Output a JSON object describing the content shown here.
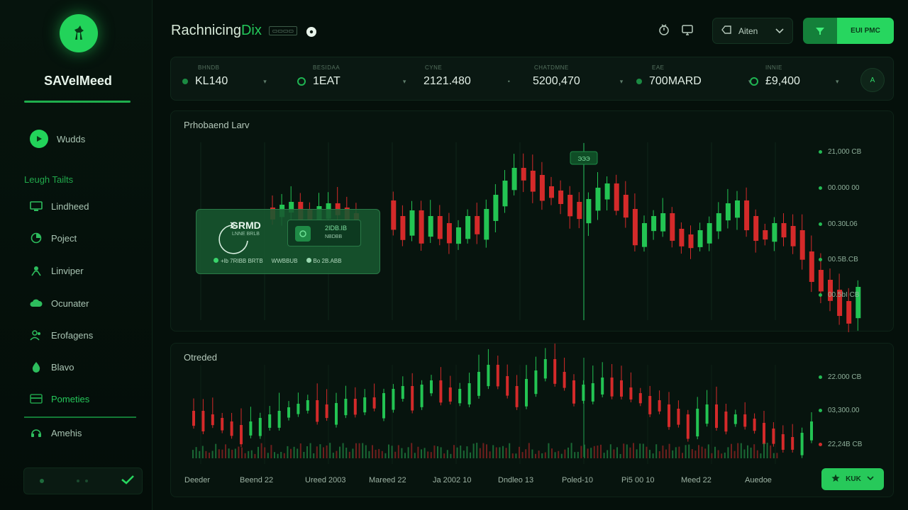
{
  "app": {
    "title_main": "Rachnicing",
    "title_accent": "Dix",
    "title_tag": "▭▭▭▭"
  },
  "sidebar": {
    "brand": "SAVelMeed",
    "primary_item": "Wudds",
    "section_label": "Leugh Tailts",
    "items": [
      {
        "label": "Lindheed",
        "icon": "monitor-icon"
      },
      {
        "label": "Poject",
        "icon": "chart-pie-icon"
      },
      {
        "label": "Linviper",
        "icon": "user-icon"
      },
      {
        "label": "Ocunater",
        "icon": "cloud-icon"
      },
      {
        "label": "Erofagens",
        "icon": "people-icon"
      },
      {
        "label": "Blavo",
        "icon": "drop-icon"
      },
      {
        "label": "Pometies",
        "icon": "card-icon"
      },
      {
        "label": "Amehis",
        "icon": "headset-icon"
      }
    ]
  },
  "topbar": {
    "alert_label": "Aiten",
    "action_label": "EUI PMC"
  },
  "stats": [
    {
      "label": "BHNDB",
      "value": "KL140"
    },
    {
      "label": "BESIDAA",
      "value": "1EAT"
    },
    {
      "label": "CYNE",
      "value": "2121.480"
    },
    {
      "label": "CHATDMNE",
      "value": "5200,470"
    },
    {
      "label": "EAE",
      "value": "700MARD"
    },
    {
      "label": "INNIE",
      "value": "£9,400"
    }
  ],
  "stats_round_button": "A",
  "chart_top": {
    "title": "Prhobaend Larv",
    "marker_label": "ЭЭЭ",
    "overlay": {
      "title": "GRMD",
      "subtitle": "LNNE BRLB",
      "inner_value": "2IDB.IB",
      "inner_sub": "NBDBB",
      "foot1": "+lb 7RIBB BRTB",
      "foot2": "WWBBUB",
      "foot3": "Bo 2B.ABB"
    },
    "y_labels": [
      "21,000 CB",
      "00.000 00",
      "00.30L06",
      "00.5B.CB",
      "00.5bI CB"
    ]
  },
  "chart_bottom": {
    "title": "Otreded",
    "y_labels": [
      "22.000 CB",
      "03,300.00",
      "22,24B CB"
    ],
    "x_labels": [
      "Deeder",
      "Beend 22",
      "Ureed 2003",
      "Mareed 22",
      "Ja 2002 10",
      "Dndleo 13",
      "Poled-10",
      "Pi5 00 10",
      "Meed 22",
      "Auedoe"
    ],
    "button_label": "KUK"
  },
  "colors": {
    "accent": "#22d35a",
    "up": "#23c453",
    "down": "#d42a2a",
    "bg": "#05100b"
  }
}
